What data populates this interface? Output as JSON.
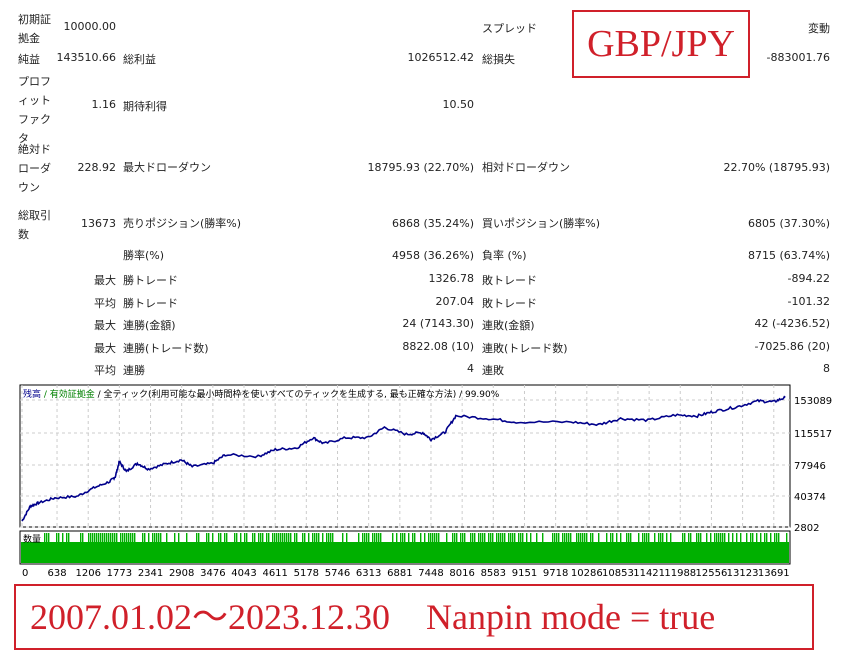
{
  "stats": {
    "initial_deposit": {
      "label": "初期証拠金",
      "value": "10000.00"
    },
    "spread": {
      "label": "スプレッド",
      "value": "変動"
    },
    "net_profit": {
      "label": "純益",
      "value": "143510.66"
    },
    "gross_profit": {
      "label": "総利益",
      "value": "1026512.42"
    },
    "gross_loss": {
      "label": "総損失",
      "value": "-883001.76"
    },
    "profit_factor": {
      "label": "プロフィットファクタ",
      "value": "1.16"
    },
    "expected_payoff": {
      "label": "期待利得",
      "value": "10.50"
    },
    "abs_drawdown": {
      "label": "絶対ドローダウン",
      "value": "228.92"
    },
    "max_drawdown": {
      "label": "最大ドローダウン",
      "value": "18795.93 (22.70%)"
    },
    "rel_drawdown": {
      "label": "相対ドローダウン",
      "value": "22.70% (18795.93)"
    },
    "total_trades": {
      "label": "総取引数",
      "value": "13673"
    },
    "short_positions": {
      "label": "売りポジション(勝率%)",
      "value": "6868 (35.24%)"
    },
    "long_positions": {
      "label": "買いポジション(勝率%)",
      "value": "6805 (37.30%)"
    },
    "win_rate": {
      "label": "勝率(%)",
      "value": "4958 (36.26%)"
    },
    "loss_rate": {
      "label": "負率 (%)",
      "value": "8715 (63.74%)"
    },
    "rows": [
      {
        "prefix": "最大",
        "l1": "勝トレード",
        "v1": "1326.78",
        "l2": "敗トレード",
        "v2": "-894.22"
      },
      {
        "prefix": "平均",
        "l1": "勝トレード",
        "v1": "207.04",
        "l2": "敗トレード",
        "v2": "-101.32"
      },
      {
        "prefix": "最大",
        "l1": "連勝(金額)",
        "v1": "24 (7143.30)",
        "l2": "連敗(金額)",
        "v2": "42 (-4236.52)"
      },
      {
        "prefix": "最大",
        "l1": "連勝(トレード数)",
        "v1": "8822.08 (10)",
        "l2": "連敗(トレード数)",
        "v2": "-7025.86 (20)"
      },
      {
        "prefix": "平均",
        "l1": "連勝",
        "v1": "4",
        "l2": "連敗",
        "v2": "8"
      }
    ]
  },
  "symbol_banner": "GBP/JPY",
  "period_banner": "2007.01.02～2023.12.30　Nanpin mode = true",
  "chart_data": {
    "type": "line",
    "legend": {
      "balance": "残高",
      "equity": "有効証拠金",
      "model": "全ティック(利用可能な最小時間枠を使いすべてのティックを生成する, 最も正確な方法)",
      "quality": "99.90%"
    },
    "volume_label": "数量",
    "y_ticks": [
      153089,
      115517,
      77946,
      40374,
      2802
    ],
    "x_ticks": [
      0,
      638,
      1206,
      1773,
      2341,
      2908,
      3476,
      4043,
      4611,
      5178,
      5746,
      6313,
      6881,
      7448,
      8016,
      8583,
      9151,
      9718,
      10286,
      10853,
      11421,
      11988,
      12556,
      13123,
      13691
    ],
    "ylim": [
      2802,
      165000
    ],
    "xlim": [
      0,
      13950
    ],
    "colors": {
      "balance": "#00008b",
      "equity": "#008000",
      "volume": "#00b000"
    },
    "balance": {
      "x": [
        0,
        150,
        300,
        600,
        1000,
        1300,
        1600,
        1700,
        1773,
        1900,
        2100,
        2300,
        2600,
        2900,
        3100,
        3476,
        3700,
        4300,
        4611,
        5000,
        5300,
        5500,
        5900,
        6300,
        6600,
        7000,
        7300,
        7448,
        7700,
        7900,
        8500,
        9000,
        10000,
        10500,
        10900,
        11400,
        11900,
        12300,
        12600,
        13000,
        13400,
        13691,
        13900
      ],
      "y": [
        10000,
        28000,
        32000,
        38000,
        40000,
        50000,
        58000,
        64000,
        82000,
        70000,
        80000,
        73000,
        79000,
        84000,
        76000,
        80000,
        90000,
        88000,
        96000,
        98000,
        110000,
        103000,
        110000,
        110000,
        122000,
        114000,
        116000,
        108000,
        116000,
        135000,
        132000,
        128000,
        128000,
        125000,
        132000,
        130000,
        136000,
        135000,
        140000,
        145000,
        152000,
        151000,
        156000
      ]
    }
  }
}
